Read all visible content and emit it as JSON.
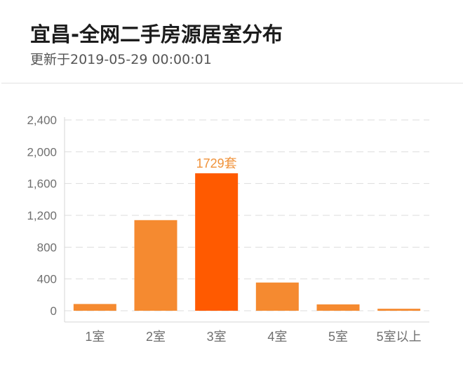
{
  "header": {
    "title": "宜昌-全网二手房源居室分布",
    "subtitle": "更新于2019-05-29 00:00:01"
  },
  "colors": {
    "bar": "#f58a30",
    "bar_highlight": "#ff5a00",
    "label": "#f0923a",
    "axis_text": "#6f6f6f",
    "grid": "#dddddd"
  },
  "chart_data": {
    "type": "bar",
    "title": "宜昌-全网二手房源居室分布",
    "subtitle": "更新于2019-05-29 00:00:01",
    "xlabel": "",
    "ylabel": "",
    "categories": [
      "1室",
      "2室",
      "3室",
      "4室",
      "5室",
      "5室以上"
    ],
    "values": [
      85,
      1140,
      1729,
      355,
      80,
      25
    ],
    "ylim": [
      0,
      2400
    ],
    "yticks": [
      "0",
      "400",
      "800",
      "1,200",
      "1,600",
      "2,000",
      "2,400"
    ],
    "grid": "horizontal dashed",
    "legend": null,
    "annotations": [
      {
        "category": "3室",
        "text": "1729套"
      }
    ],
    "highlight_index": 2
  }
}
